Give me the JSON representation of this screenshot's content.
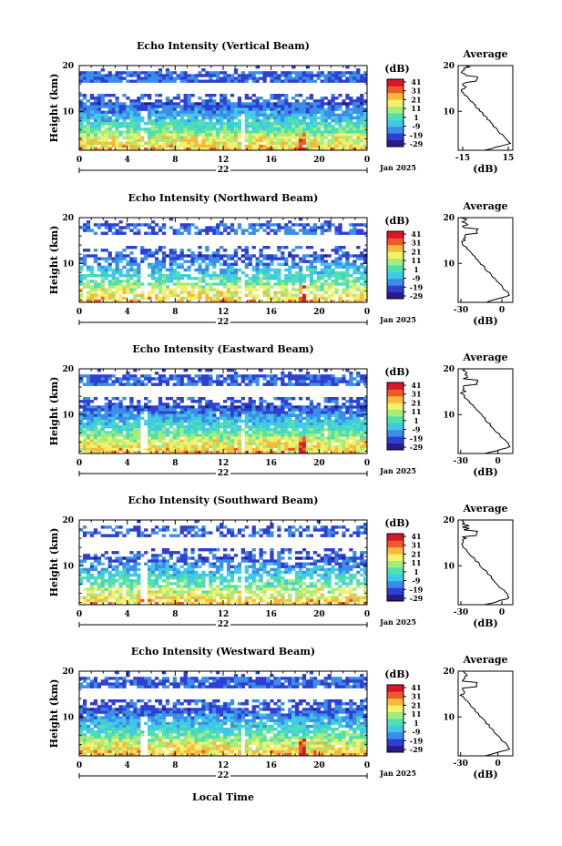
{
  "footer": {
    "xlabel": "Local Time"
  },
  "colorbar": {
    "unit": "(dB)",
    "tick_labels": [
      "41",
      "31",
      "21",
      "11",
      "1",
      "-9",
      "-19",
      "-29"
    ],
    "colors": [
      "#2b1a8c",
      "#2f3fd0",
      "#3a8ee8",
      "#40c8e8",
      "#4fe0b0",
      "#a6ec7a",
      "#f3f06a",
      "#f5b93c",
      "#ef5a2a",
      "#d8182a"
    ]
  },
  "chart_data": [
    {
      "type": "heatmap",
      "title": "Echo Intensity (Vertical Beam)",
      "ylabel": "Height (km)",
      "xlabel": "",
      "x_ticks": [
        "0",
        "4",
        "8",
        "12",
        "16",
        "20",
        "0"
      ],
      "y_ticks": [
        "20",
        "10"
      ],
      "date_center": "22",
      "date_label": "Jan 2025",
      "xlim": [
        0,
        24
      ],
      "ylim": [
        1.5,
        20
      ],
      "colorbar_range": [
        -29,
        41
      ],
      "avg_profile": {
        "title": "Average",
        "xlabel": "(dB)",
        "x_ticks": [
          "-15",
          "15"
        ],
        "xlim": [
          -18,
          18
        ],
        "y_ticks": [
          "20",
          "10"
        ]
      }
    },
    {
      "type": "heatmap",
      "title": "Echo Intensity (Northward Beam)",
      "ylabel": "Height (km)",
      "xlabel": "",
      "x_ticks": [
        "0",
        "4",
        "8",
        "12",
        "16",
        "20",
        "0"
      ],
      "y_ticks": [
        "20",
        "10"
      ],
      "date_center": "22",
      "date_label": "Jan 2025",
      "xlim": [
        0,
        24
      ],
      "ylim": [
        1.5,
        20
      ],
      "colorbar_range": [
        -29,
        41
      ],
      "avg_profile": {
        "title": "Average",
        "xlabel": "(dB)",
        "x_ticks": [
          "-30",
          "0"
        ],
        "xlim": [
          -32,
          8
        ],
        "y_ticks": [
          "20",
          "10"
        ]
      }
    },
    {
      "type": "heatmap",
      "title": "Echo Intensity (Eastward Beam)",
      "ylabel": "Height (km)",
      "xlabel": "",
      "x_ticks": [
        "0",
        "4",
        "8",
        "12",
        "16",
        "20",
        "0"
      ],
      "y_ticks": [
        "20",
        "10"
      ],
      "date_center": "22",
      "date_label": "Jan 2025",
      "xlim": [
        0,
        24
      ],
      "ylim": [
        1.5,
        20
      ],
      "colorbar_range": [
        -29,
        41
      ],
      "avg_profile": {
        "title": "Average",
        "xlabel": "(dB)",
        "x_ticks": [
          "-30",
          "0"
        ],
        "xlim": [
          -32,
          12
        ],
        "y_ticks": [
          "20",
          "10"
        ]
      }
    },
    {
      "type": "heatmap",
      "title": "Echo Intensity (Southward Beam)",
      "ylabel": "Height (km)",
      "xlabel": "",
      "x_ticks": [
        "0",
        "4",
        "8",
        "12",
        "16",
        "20",
        "0"
      ],
      "y_ticks": [
        "20",
        "10"
      ],
      "date_center": "22",
      "date_label": "Jan 2025",
      "xlim": [
        0,
        24
      ],
      "ylim": [
        1.5,
        20
      ],
      "colorbar_range": [
        -29,
        41
      ],
      "avg_profile": {
        "title": "Average",
        "xlabel": "(dB)",
        "x_ticks": [
          "-30",
          "0"
        ],
        "xlim": [
          -32,
          8
        ],
        "y_ticks": [
          "20",
          "10"
        ]
      }
    },
    {
      "type": "heatmap",
      "title": "Echo Intensity (Westward Beam)",
      "ylabel": "Height (km)",
      "xlabel": "",
      "x_ticks": [
        "0",
        "4",
        "8",
        "12",
        "16",
        "20",
        "0"
      ],
      "y_ticks": [
        "20",
        "10"
      ],
      "date_center": "22",
      "date_label": "Jan 2025",
      "xlim": [
        0,
        24
      ],
      "ylim": [
        1.5,
        20
      ],
      "colorbar_range": [
        -29,
        41
      ],
      "avg_profile": {
        "title": "Average",
        "xlabel": "(dB)",
        "x_ticks": [
          "-30",
          "0"
        ],
        "xlim": [
          -32,
          12
        ],
        "y_ticks": [
          "20",
          "10"
        ]
      }
    }
  ]
}
